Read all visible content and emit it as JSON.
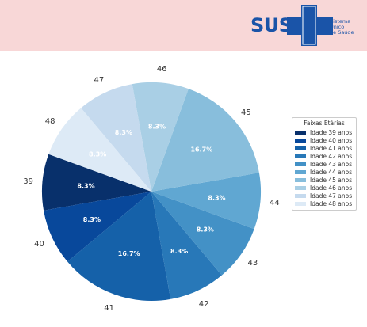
{
  "header": {
    "logo_text": "SUS",
    "logo_subtitle": [
      "Sistema",
      "Único",
      "de Saúde"
    ],
    "brand_color": "#1a54a8"
  },
  "chart_data": {
    "type": "pie",
    "categories": [
      "39",
      "40",
      "41",
      "42",
      "43",
      "44",
      "45",
      "46",
      "47",
      "48"
    ],
    "values": [
      8.3,
      8.3,
      16.7,
      8.3,
      8.3,
      8.3,
      16.7,
      8.3,
      8.3,
      8.3
    ],
    "percent_labels": [
      "8.3%",
      "8.3%",
      "16.7%",
      "8.3%",
      "8.3%",
      "8.3%",
      "16.7%",
      "8.3%",
      "8.3%",
      "8.3%"
    ],
    "colors": [
      "#08306b",
      "#08489b",
      "#1561a9",
      "#2878b8",
      "#4391c6",
      "#60a7d2",
      "#88bedc",
      "#a9cfe5",
      "#c5daee",
      "#ddeaf6"
    ],
    "start_angle_deg": 160,
    "direction": "counterclockwise",
    "legend": {
      "title": "Faixas Etárias",
      "entries": [
        "Idade 39 anos",
        "Idade 40 anos",
        "Idade 41 anos",
        "Idade 42 anos",
        "Idade 43 anos",
        "Idade 44 anos",
        "Idade 45 anos",
        "Idade 46 anos",
        "Idade 47 anos",
        "Idade 48 anos"
      ],
      "placement": "right"
    }
  }
}
